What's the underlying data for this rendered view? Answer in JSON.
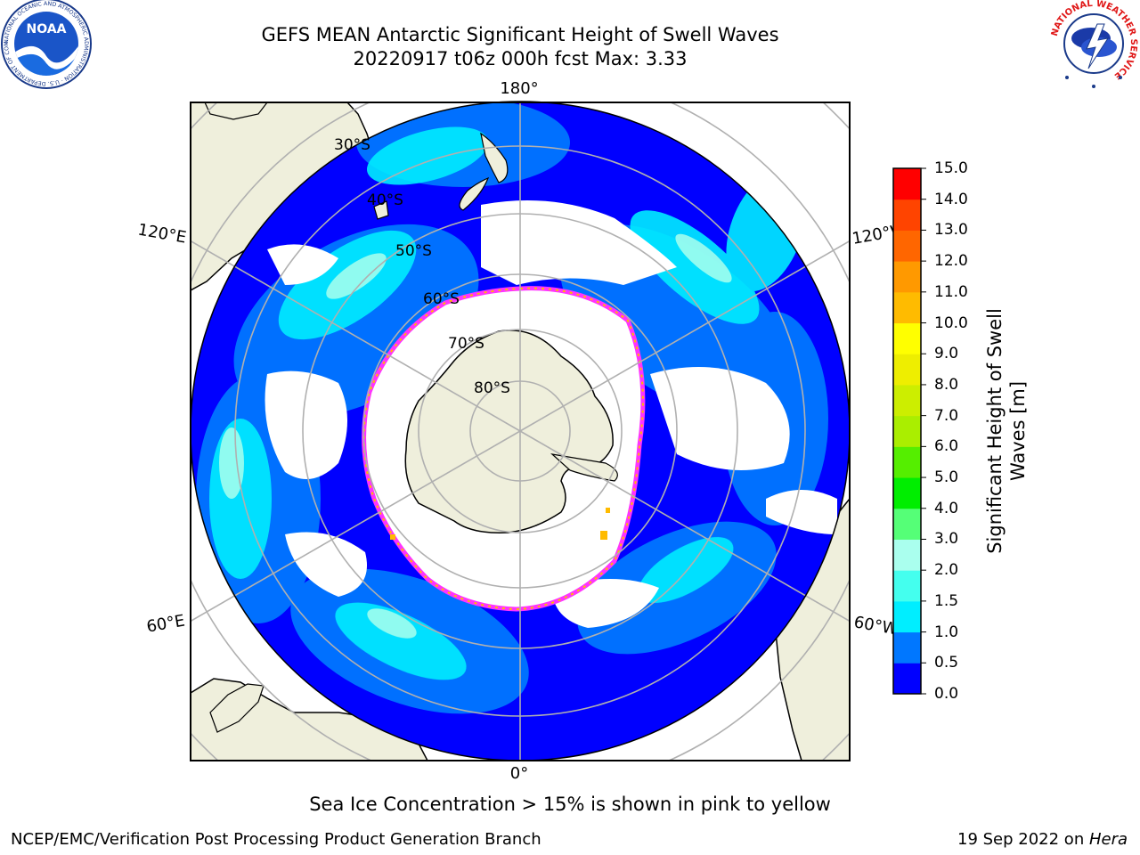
{
  "header": {
    "title_line1": "GEFS MEAN Antarctic Significant Height of Swell Waves",
    "title_line2": "20220917 t06z 000h fcst   Max: 3.33"
  },
  "map": {
    "projection": "south-polar-stereographic",
    "longitude_labels": {
      "top": "180°",
      "bottom": "0°",
      "upper_left": "120°E",
      "upper_right": "120°W",
      "lower_left": "60°E",
      "lower_right": "60°W"
    },
    "latitude_labels": [
      "30°S",
      "40°S",
      "50°S",
      "60°S",
      "70°S",
      "80°S"
    ],
    "colors": {
      "land": "#efefdc",
      "ice_free_ocean_base": "#0000ff",
      "sea_ice_edge": "#ff33ff",
      "no_data": "#ffffff",
      "grid": "#b0b0b0"
    }
  },
  "colorbar": {
    "title_line1": "Significant Height of Swell",
    "title_line2": "Waves [m]",
    "tick_labels": [
      "15.0",
      "14.0",
      "13.0",
      "12.0",
      "11.0",
      "10.0",
      "9.0",
      "8.0",
      "7.0",
      "6.0",
      "5.0",
      "4.0",
      "3.0",
      "2.0",
      "1.5",
      "1.0",
      "0.5",
      "0.0"
    ],
    "bins": [
      {
        "from": 0.0,
        "to": 0.5,
        "color": "#0000ff"
      },
      {
        "from": 0.5,
        "to": 1.0,
        "color": "#0077ff"
      },
      {
        "from": 1.0,
        "to": 1.5,
        "color": "#00eeff"
      },
      {
        "from": 1.5,
        "to": 2.0,
        "color": "#44ffee"
      },
      {
        "from": 2.0,
        "to": 3.0,
        "color": "#aaffee"
      },
      {
        "from": 3.0,
        "to": 4.0,
        "color": "#55ff77"
      },
      {
        "from": 4.0,
        "to": 5.0,
        "color": "#00ee00"
      },
      {
        "from": 5.0,
        "to": 6.0,
        "color": "#55ee00"
      },
      {
        "from": 6.0,
        "to": 7.0,
        "color": "#aaee00"
      },
      {
        "from": 7.0,
        "to": 8.0,
        "color": "#ccee00"
      },
      {
        "from": 8.0,
        "to": 9.0,
        "color": "#eeee00"
      },
      {
        "from": 9.0,
        "to": 10.0,
        "color": "#ffff00"
      },
      {
        "from": 10.0,
        "to": 11.0,
        "color": "#ffbb00"
      },
      {
        "from": 11.0,
        "to": 12.0,
        "color": "#ff9900"
      },
      {
        "from": 12.0,
        "to": 13.0,
        "color": "#ff6600"
      },
      {
        "from": 13.0,
        "to": 14.0,
        "color": "#ff4400"
      },
      {
        "from": 14.0,
        "to": 15.0,
        "color": "#ff0000"
      }
    ]
  },
  "note": "Sea Ice Concentration > 15% is shown in pink to yellow",
  "footer": {
    "left": "NCEP/EMC/Verification Post Processing Product Generation Branch",
    "right_prefix": "19 Sep 2022 on ",
    "right_host": "Hera"
  },
  "logos": {
    "noaa": {
      "text": "NOAA",
      "ring_text": "NATIONAL OCEANIC AND ATMOSPHERIC ADMINISTRATION · U.S. DEPARTMENT OF COMMERCE"
    },
    "nws": {
      "ring_text": "NATIONAL WEATHER SERVICE"
    }
  }
}
